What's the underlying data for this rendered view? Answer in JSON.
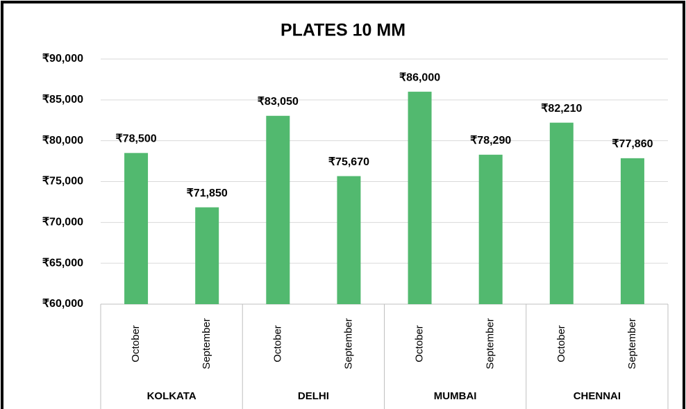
{
  "chart_data": {
    "type": "bar",
    "title": "PLATES 10 MM",
    "categories": [
      "October",
      "September",
      "October",
      "September",
      "October",
      "September",
      "October",
      "September"
    ],
    "groups": [
      "KOLKATA",
      "DELHI",
      "MUMBAI",
      "CHENNAI"
    ],
    "values": [
      78500,
      71850,
      83050,
      75670,
      86000,
      78290,
      82210,
      77860
    ],
    "value_labels": [
      "₹78,500",
      "₹71,850",
      "₹83,050",
      "₹75,670",
      "₹86,000",
      "₹78,290",
      "₹82,210",
      "₹77,860"
    ],
    "color": "#52b96f",
    "ylim": [
      60000,
      90000
    ],
    "yticks": [
      {
        "value": 60000,
        "label": "₹60,000"
      },
      {
        "value": 65000,
        "label": "₹65,000"
      },
      {
        "value": 70000,
        "label": "₹70,000"
      },
      {
        "value": 75000,
        "label": "₹75,000"
      },
      {
        "value": 80000,
        "label": "₹80,000"
      },
      {
        "value": 85000,
        "label": "₹85,000"
      },
      {
        "value": 90000,
        "label": "₹90,000"
      }
    ],
    "grid": true
  }
}
